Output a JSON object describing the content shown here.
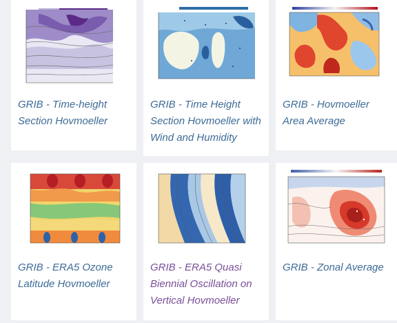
{
  "cards": [
    {
      "title": "GRIB - Time-height Section Hovmoeller",
      "link_color": "#3d6b96"
    },
    {
      "title": "GRIB - Time Height Section Hovmoeller with Wind and Humidity",
      "link_color": "#3d6b96"
    },
    {
      "title": "GRIB - Hovmoeller Area Average",
      "link_color": "#3d6b96"
    },
    {
      "title": "GRIB - ERA5 Ozone Latitude Hovmoeller",
      "link_color": "#3d6b96"
    },
    {
      "title": "GRIB - ERA5 Quasi Biennial Oscillation on Vertical Hovmoeller",
      "link_color": "#7a4e98"
    },
    {
      "title": "GRIB - Zonal Average",
      "link_color": "#3d6b96"
    }
  ]
}
